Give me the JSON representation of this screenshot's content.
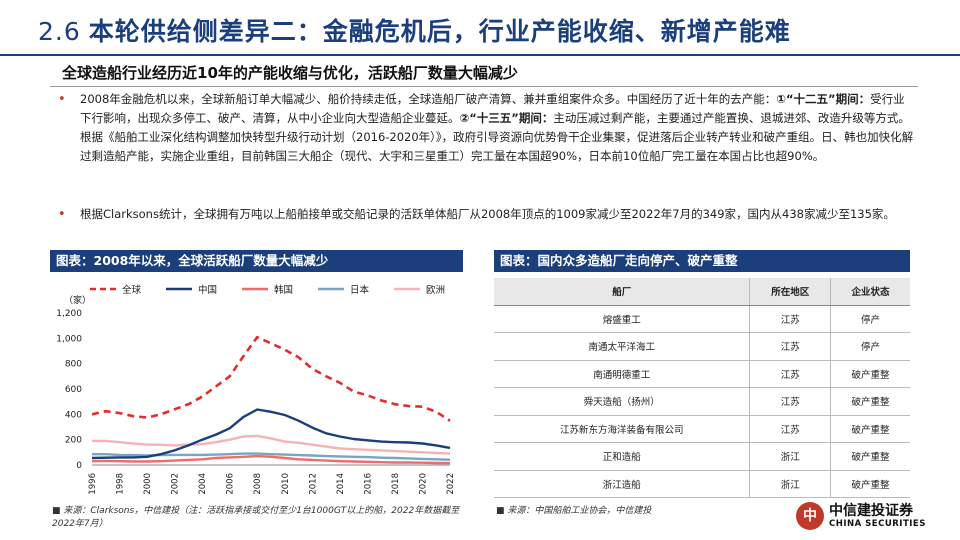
{
  "header": {
    "number": "2.6",
    "title": "本轮供给侧差异二：金融危机后，行业产能收缩、新增产能难"
  },
  "subtitle": "全球造船行业经历近10年的产能收缩与优化，活跃船厂数量大幅减少",
  "bullets": [
    {
      "p1": "2008年金融危机以来，全球新船订单大幅减少、船价持续走低，全球造船厂破产清算、兼并重组案件众多。中国经历了近十年的去产能：",
      "b1": "①“十二五”期间：",
      "p2": "受行业下行影响，出现众多停工、破产、清算，从中小企业向大型造船企业蔓延。",
      "b2": "②“十三五”期间：",
      "p3": "主动压减过剩产能，主要通过产能置换、退城进郊、改造升级等方式。根据《船舶工业深化结构调整加快转型升级行动计划（2016-2020年）》，政府引导资源向优势骨干企业集聚，促进落后企业转产转业和破产重组。日、韩也加快化解过剩造船产能，实施企业重组，目前韩国三大船企（现代、大宇和三星重工）完工量在本国超90%，日本前10位船厂完工量在本国占比也超90%。"
    },
    {
      "p1": "根据Clarksons统计，全球拥有万吨以上船舶接单或交船记录的活跃单体船厂从2008年顶点的1009家减少至2022年7月的349家，国内从438家减少至135家。"
    }
  ],
  "figure_left": {
    "title": "图表：2008年以来，全球活跃船厂数量大幅减少",
    "source_bullet": "■",
    "source": "来源：Clarksons，中信建投（注：活跃指承接或交付至少1台1000GT以上的船，2022年数据截至2022年7月）"
  },
  "figure_right": {
    "title": "图表：国内众多造船厂走向停产、破产重整",
    "source_bullet": "■",
    "source": "来源：中国船舶工业协会，中信建投",
    "columns": [
      "船厂",
      "所在地区",
      "企业状态"
    ],
    "rows": [
      [
        "熔盛重工",
        "江苏",
        "停产"
      ],
      [
        "南通太平洋海工",
        "江苏",
        "停产"
      ],
      [
        "南通明德重工",
        "江苏",
        "破产重整"
      ],
      [
        "舜天造船（扬州）",
        "江苏",
        "破产重整"
      ],
      [
        "江苏新东方海洋装备有限公司",
        "江苏",
        "破产重整"
      ],
      [
        "正和造船",
        "浙江",
        "破产重整"
      ],
      [
        "浙江造船",
        "浙江",
        "破产重整"
      ]
    ]
  },
  "chart_data": {
    "type": "line",
    "title": "",
    "ylabel": "（家）",
    "xlabel": "",
    "ylim": [
      0,
      1200
    ],
    "yticks": [
      "0",
      "200",
      "400",
      "600",
      "800",
      "1,000",
      "1,200"
    ],
    "x": [
      "1996",
      "1997",
      "1998",
      "1999",
      "2000",
      "2001",
      "2002",
      "2003",
      "2004",
      "2005",
      "2006",
      "2007",
      "2008",
      "2009",
      "2010",
      "2011",
      "2012",
      "2013",
      "2014",
      "2015",
      "2016",
      "2017",
      "2018",
      "2019",
      "2020",
      "2021",
      "2022"
    ],
    "xticks": [
      "1996",
      "1998",
      "2000",
      "2002",
      "2004",
      "2006",
      "2008",
      "2010",
      "2012",
      "2014",
      "2016",
      "2018",
      "2020",
      "2022"
    ],
    "series": [
      {
        "name": "全球",
        "color": "#e32d2d",
        "dash": true,
        "values": [
          400,
          425,
          410,
          385,
          375,
          400,
          440,
          480,
          540,
          620,
          700,
          860,
          1009,
          960,
          910,
          850,
          760,
          700,
          650,
          580,
          550,
          510,
          480,
          465,
          460,
          420,
          349
        ]
      },
      {
        "name": "中国",
        "color": "#1b3f7d",
        "dash": false,
        "values": [
          55,
          58,
          60,
          60,
          65,
          85,
          115,
          155,
          200,
          240,
          290,
          380,
          438,
          420,
          395,
          350,
          295,
          250,
          225,
          205,
          195,
          185,
          180,
          178,
          170,
          155,
          135
        ]
      },
      {
        "name": "韩国",
        "color": "#f26b6b",
        "dash": false,
        "values": [
          30,
          32,
          30,
          28,
          28,
          30,
          35,
          40,
          45,
          55,
          60,
          65,
          70,
          65,
          55,
          45,
          40,
          35,
          30,
          28,
          25,
          22,
          20,
          20,
          18,
          16,
          15
        ]
      },
      {
        "name": "日本",
        "color": "#7ba3c3",
        "dash": false,
        "values": [
          85,
          85,
          80,
          78,
          75,
          78,
          80,
          80,
          80,
          82,
          85,
          90,
          90,
          85,
          82,
          78,
          75,
          70,
          68,
          65,
          62,
          58,
          55,
          52,
          48,
          45,
          42
        ]
      },
      {
        "name": "欧洲",
        "color": "#f6b3b3",
        "dash": false,
        "values": [
          190,
          190,
          180,
          170,
          160,
          160,
          155,
          160,
          165,
          180,
          200,
          225,
          230,
          210,
          185,
          175,
          160,
          145,
          130,
          125,
          120,
          115,
          110,
          105,
          100,
          95,
          90
        ]
      }
    ]
  },
  "logo": {
    "mark": "中",
    "name_cn": "中信建投证券",
    "name_en": "CHINA SECURITIES"
  }
}
